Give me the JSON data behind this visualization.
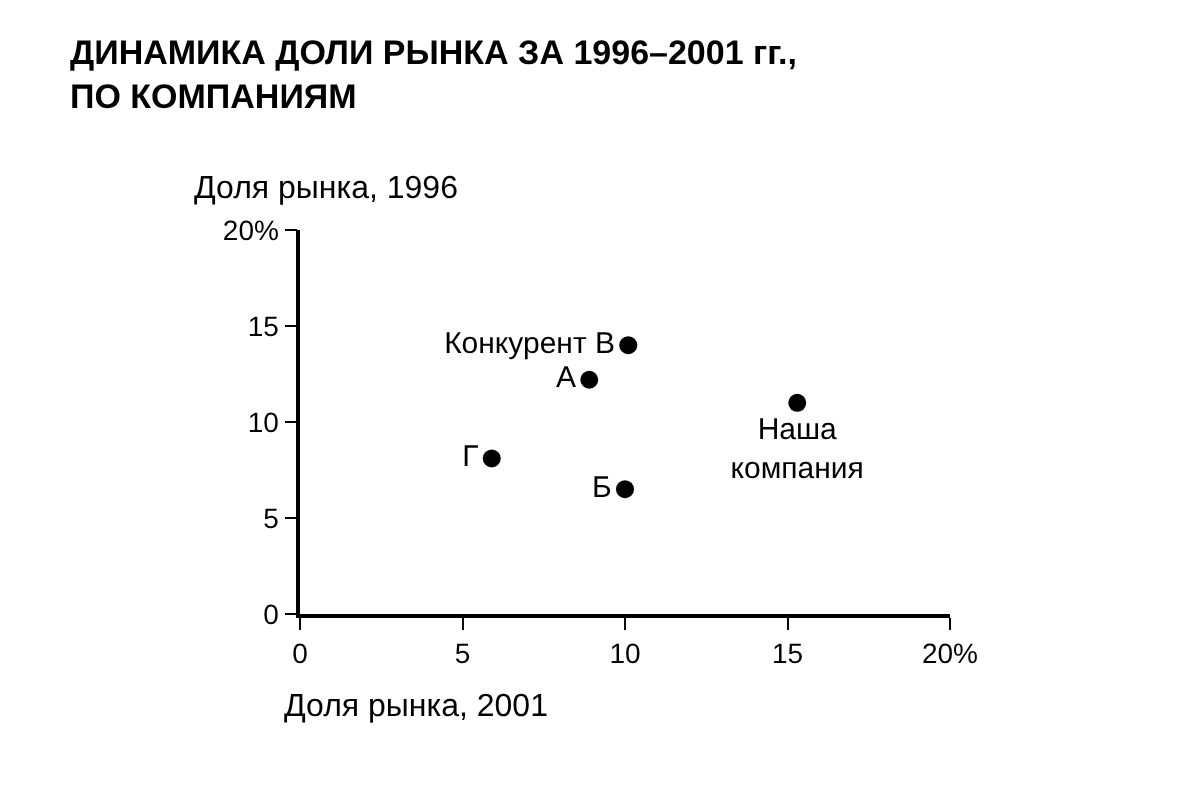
{
  "chart_data": {
    "type": "scatter",
    "title": "ДИНАМИКА ДОЛИ РЫНКА ЗА 1996–2001 гг.,\nПО КОМПАНИЯМ",
    "xlabel": "Доля рынка, 2001",
    "ylabel": "Доля рынка, 1996",
    "xlim": [
      0,
      20
    ],
    "xticks": [
      0,
      5,
      10,
      15,
      {
        "value": 20,
        "label": "20%"
      }
    ],
    "ylim": [
      0,
      20
    ],
    "yticks": [
      0,
      5,
      10,
      15,
      {
        "value": 20,
        "label": "20%"
      }
    ],
    "legend": false,
    "marker": "circle",
    "series": [
      {
        "name": "Конкурент В",
        "color": "#000000",
        "x": [
          10.1
        ],
        "values": [
          14.0
        ]
      },
      {
        "name": "А",
        "color": "#000000",
        "x": [
          8.9
        ],
        "values": [
          12.2
        ]
      },
      {
        "name": "Г",
        "color": "#000000",
        "x": [
          5.9
        ],
        "values": [
          8.1
        ]
      },
      {
        "name": "Б",
        "color": "#000000",
        "x": [
          10.0
        ],
        "values": [
          6.5
        ]
      },
      {
        "name": "Наша\nкомпания",
        "color": "#000000",
        "x": [
          15.3
        ],
        "values": [
          11.0
        ]
      }
    ]
  }
}
